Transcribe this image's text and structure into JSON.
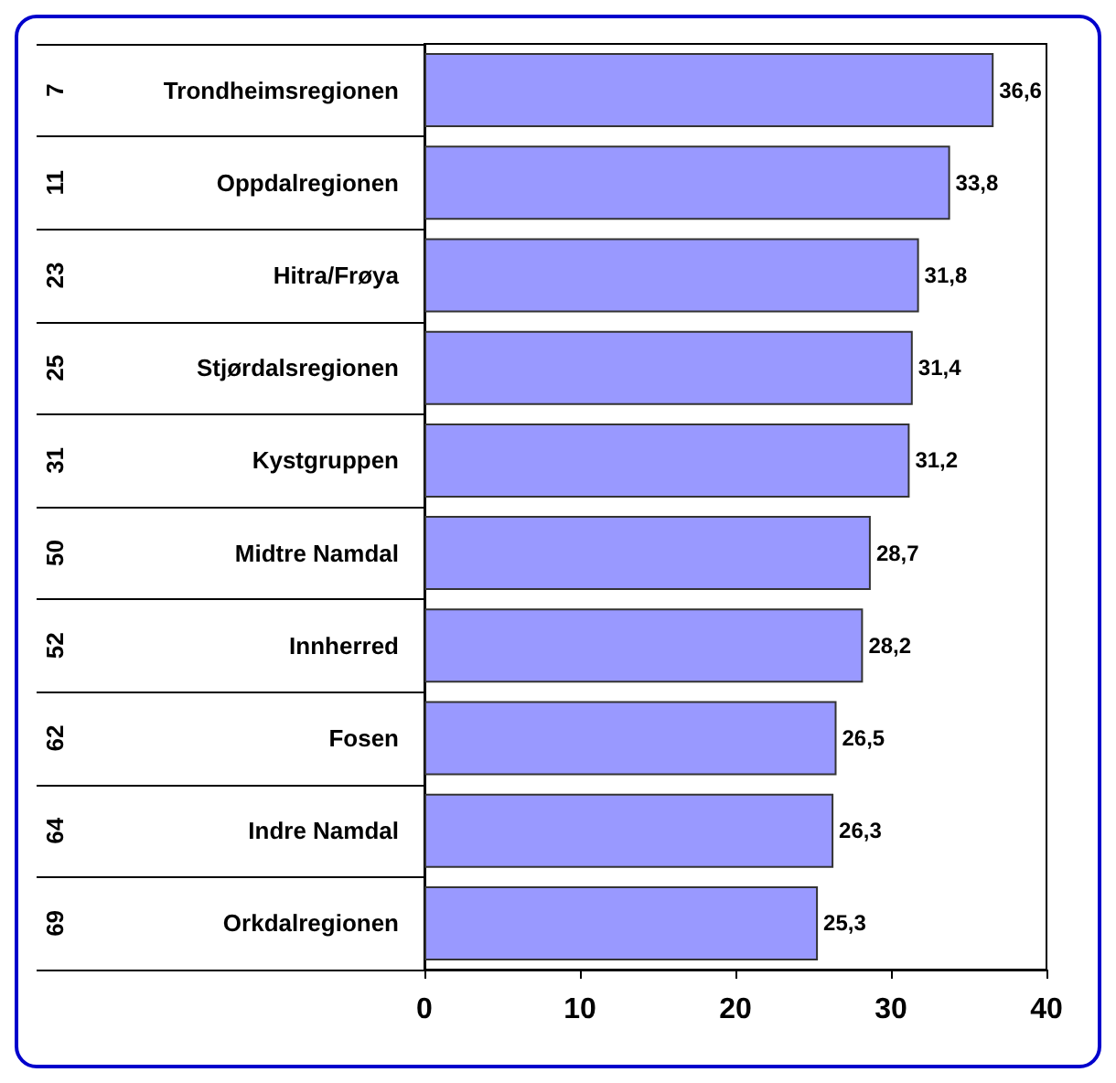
{
  "chart_data": {
    "type": "bar",
    "orientation": "horizontal",
    "categories": [
      "Trondheimsregionen",
      "Oppdalregionen",
      "Hitra/Frøya",
      "Stjørdalsregionen",
      "Kystgruppen",
      "Midtre Namdal",
      "Innherred",
      "Fosen",
      "Indre Namdal",
      "Orkdalregionen"
    ],
    "values": [
      36.6,
      33.8,
      31.8,
      31.4,
      31.2,
      28.7,
      28.2,
      26.5,
      26.3,
      25.3
    ],
    "value_labels": [
      "36,6",
      "33,8",
      "31,8",
      "31,4",
      "31,2",
      "28,7",
      "28,2",
      "26,5",
      "26,3",
      "25,3"
    ],
    "color": "#9999ff",
    "xlim": [
      0,
      40
    ],
    "xticks": [
      0,
      10,
      20,
      30,
      40
    ],
    "grid": false,
    "annotations": [
      "7",
      "11",
      "23",
      "25",
      "31",
      "50",
      "52",
      "62",
      "64",
      "69"
    ]
  }
}
